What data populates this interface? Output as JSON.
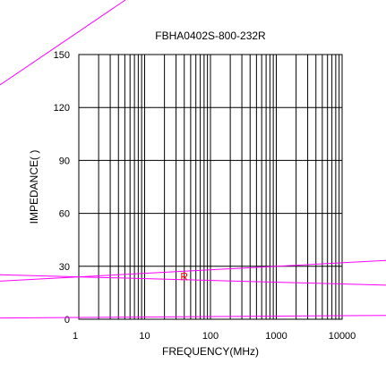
{
  "chart_data": {
    "type": "line",
    "title": "FBHA0402S-800-232R",
    "xlabel": "FREQUENCY(MHz)",
    "ylabel": "IMPEDANCE(  )",
    "x_scale": "log",
    "xlim": [
      1,
      10000
    ],
    "ylim": [
      0,
      150
    ],
    "x_ticks": [
      1,
      10,
      100,
      1000,
      10000
    ],
    "x_tick_labels": [
      "1",
      "10",
      "100",
      "1000",
      "10000"
    ],
    "y_ticks": [
      0,
      30,
      60,
      90,
      120,
      150
    ],
    "y_tick_labels": [
      "0",
      "30",
      "60",
      "90",
      "120",
      "150"
    ],
    "grid": true,
    "series_colors": {
      "main": "#ff00ff",
      "label": "#ff0000"
    },
    "annotations": [
      {
        "text": "R",
        "x": 40,
        "y": 22
      }
    ],
    "series": [
      {
        "values": [
          {
            "x": 1,
            "y": 24
          },
          {
            "x": 10000,
            "y": 32
          }
        ]
      },
      {
        "values": [
          {
            "x": 1,
            "y": 24
          },
          {
            "x": 10000,
            "y": 20
          }
        ]
      },
      {
        "values": [
          {
            "x": 1,
            "y": 1
          },
          {
            "x": 10000,
            "y": 2
          }
        ]
      }
    ]
  }
}
